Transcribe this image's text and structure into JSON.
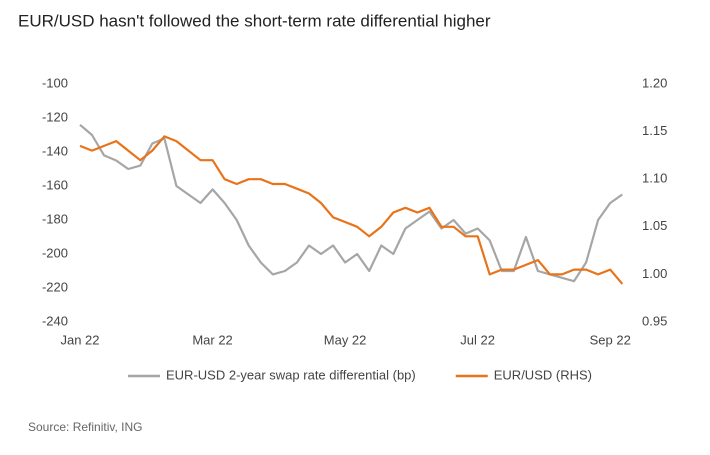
{
  "chart_data": {
    "type": "line",
    "title": "EUR/USD hasn't followed the short-term rate differential higher",
    "source": "Source: Refinitiv, ING",
    "categories": [
      "Jan 22",
      null,
      null,
      null,
      null,
      null,
      null,
      null,
      null,
      null,
      null,
      "Mar 22",
      null,
      null,
      null,
      null,
      null,
      null,
      null,
      null,
      null,
      null,
      "May 22",
      null,
      null,
      null,
      null,
      null,
      null,
      null,
      null,
      null,
      null,
      "Jul 22",
      null,
      null,
      null,
      null,
      null,
      null,
      null,
      null,
      null,
      null,
      "Sep 22",
      null
    ],
    "series": [
      {
        "name": "EUR-USD 2-year swap rate differential (bp)",
        "color": "#a6a6a6",
        "axis": "y",
        "values": [
          -124,
          -130,
          -142,
          -145,
          -150,
          -148,
          -135,
          -132,
          -160,
          -165,
          -170,
          -162,
          -170,
          -180,
          -195,
          -205,
          -212,
          -210,
          -205,
          -195,
          -200,
          -195,
          -205,
          -200,
          -210,
          -195,
          -200,
          -185,
          -180,
          -175,
          -185,
          -180,
          -188,
          -185,
          -192,
          -210,
          -210,
          -190,
          -210,
          -212,
          -214,
          -216,
          -205,
          -180,
          -170,
          -165
        ]
      },
      {
        "name": "EUR/USD (RHS)",
        "color": "#e8731a",
        "axis": "y2",
        "values": [
          1.135,
          1.13,
          1.135,
          1.14,
          1.13,
          1.12,
          1.13,
          1.145,
          1.14,
          1.13,
          1.12,
          1.12,
          1.1,
          1.095,
          1.1,
          1.1,
          1.095,
          1.095,
          1.09,
          1.085,
          1.075,
          1.06,
          1.055,
          1.05,
          1.04,
          1.05,
          1.065,
          1.07,
          1.065,
          1.07,
          1.05,
          1.05,
          1.04,
          1.04,
          1.0,
          1.005,
          1.005,
          1.01,
          1.015,
          1.0,
          1.0,
          1.005,
          1.005,
          1.0,
          1.005,
          0.99
        ]
      }
    ],
    "ylim": [
      -240,
      -100
    ],
    "yticks": [
      -240,
      -220,
      -200,
      -180,
      -160,
      -140,
      -120,
      -100
    ],
    "y2lim": [
      0.95,
      1.2
    ],
    "y2ticks": [
      0.95,
      {
        "value": 1.0,
        "label": "1.00"
      },
      1.05,
      {
        "value": 1.1,
        "label": "1.10"
      },
      1.15,
      {
        "value": 1.2,
        "label": "1.20"
      }
    ],
    "grid": false,
    "legend": "bottom"
  }
}
